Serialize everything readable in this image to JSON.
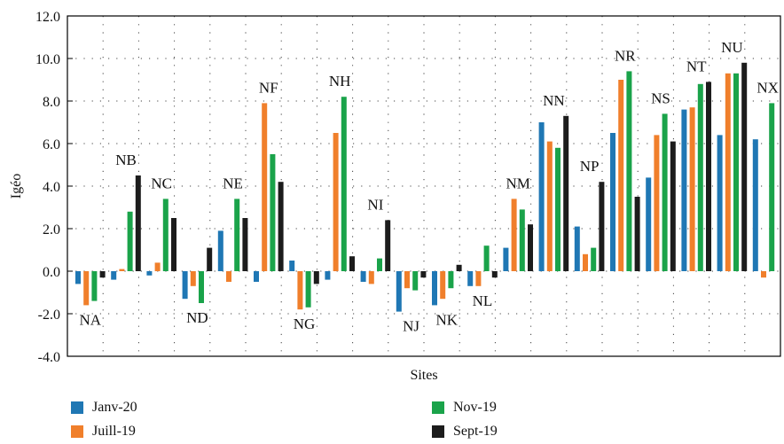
{
  "chart_data": {
    "type": "bar",
    "xlabel": "Sites",
    "ylabel": "Igéo",
    "ylim": [
      -4.0,
      12.0
    ],
    "yticks": [
      "-4.0",
      "-2.0",
      "0.0",
      "2.0",
      "4.0",
      "6.0",
      "8.0",
      "10.0",
      "12.0"
    ],
    "grid": true,
    "legend_position": "bottom",
    "categories": [
      "NA",
      "NB",
      "NC",
      "ND",
      "NE",
      "NF",
      "NG",
      "NH",
      "NI",
      "NJ",
      "NK",
      "NL",
      "NM",
      "NN",
      "NP",
      "NR",
      "NS",
      "NT",
      "NU",
      "NX"
    ],
    "series": [
      {
        "name": "Janv-20",
        "color": "#1f77b4",
        "values": [
          -0.6,
          -0.4,
          -0.2,
          -1.3,
          1.9,
          -0.5,
          0.5,
          -0.4,
          -0.5,
          -1.9,
          -1.6,
          -0.7,
          1.1,
          7.0,
          2.1,
          6.5,
          4.4,
          7.6,
          6.4,
          6.2
        ]
      },
      {
        "name": "Juill-19",
        "color": "#f07f2b",
        "values": [
          -1.6,
          0.1,
          0.4,
          -0.7,
          -0.5,
          7.9,
          -1.8,
          6.5,
          -0.6,
          -0.8,
          -1.3,
          -0.7,
          3.4,
          6.1,
          0.8,
          9.0,
          6.4,
          7.7,
          9.3,
          -0.3
        ]
      },
      {
        "name": "Nov-19",
        "color": "#1aa34a",
        "values": [
          -1.4,
          2.8,
          3.4,
          -1.5,
          3.4,
          5.5,
          -1.7,
          8.2,
          0.6,
          -0.9,
          -0.8,
          1.2,
          2.9,
          5.8,
          1.1,
          9.4,
          7.4,
          8.8,
          9.3,
          7.9
        ]
      },
      {
        "name": "Sept-19",
        "color": "#1c1c1c",
        "values": [
          -0.3,
          4.5,
          2.5,
          1.1,
          2.5,
          4.2,
          -0.6,
          0.7,
          2.4,
          -0.3,
          0.3,
          -0.3,
          2.2,
          7.3,
          4.2,
          3.5,
          6.1,
          8.9,
          9.8,
          null
        ]
      }
    ]
  }
}
